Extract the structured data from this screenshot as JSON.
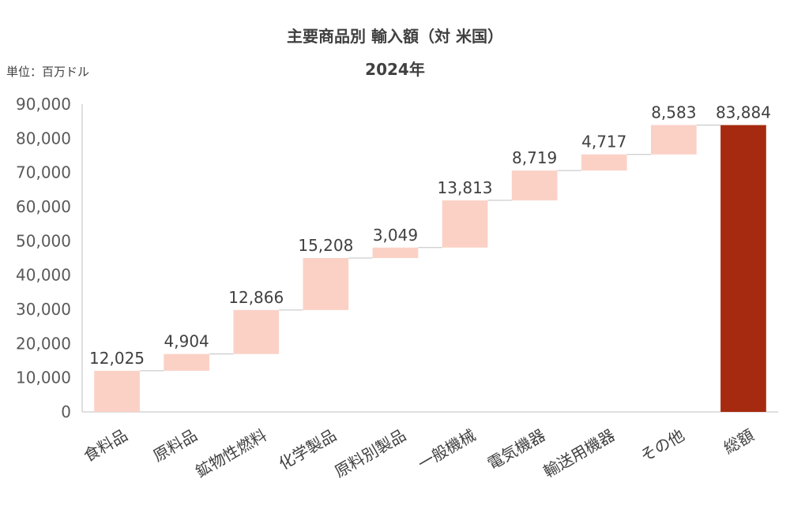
{
  "header": {
    "title": "主要商品別 輸入額（対 米国）",
    "subtitle": "2024年",
    "unit": "単位：百万ドル"
  },
  "colors": {
    "step": "#fbd1c6",
    "total": "#a52a0f",
    "connector": "#c0c0c0",
    "axis": "#bfbfbf"
  },
  "chart_data": {
    "type": "bar",
    "subtype": "waterfall",
    "title": "主要商品別 輸入額（対 米国）",
    "subtitle": "2024年",
    "ylabel": "",
    "ylim": [
      0,
      90000
    ],
    "yticks": [
      0,
      10000,
      20000,
      30000,
      40000,
      50000,
      60000,
      70000,
      80000,
      90000
    ],
    "ytick_labels": [
      "0",
      "10,000",
      "20,000",
      "30,000",
      "40,000",
      "50,000",
      "60,000",
      "70,000",
      "80,000",
      "90,000"
    ],
    "grid": false,
    "categories": [
      "食料品",
      "原料品",
      "鉱物性燃料",
      "化学製品",
      "原料別製品",
      "一般機械",
      "電気機器",
      "輸送用機器",
      "その他",
      "総額"
    ],
    "values": [
      12025,
      4904,
      12866,
      15208,
      3049,
      13813,
      8719,
      4717,
      8583,
      83884
    ],
    "value_labels": [
      "12,025",
      "4,904",
      "12,866",
      "15,208",
      "3,049",
      "13,813",
      "8,719",
      "4,717",
      "8,583",
      "83,884"
    ],
    "is_total": [
      false,
      false,
      false,
      false,
      false,
      false,
      false,
      false,
      false,
      true
    ]
  }
}
